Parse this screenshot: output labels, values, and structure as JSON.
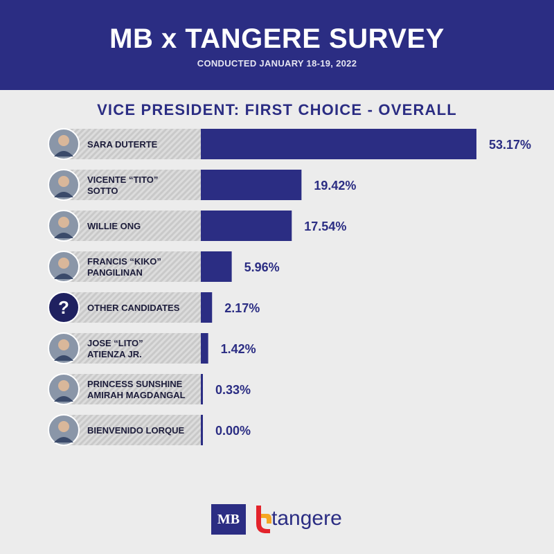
{
  "header": {
    "title": "MB x TANGERE SURVEY",
    "subtitle": "CONDUCTED JANUARY 18-19, 2022"
  },
  "colors": {
    "primary": "#2b2d83",
    "background": "#ececec",
    "label_stripe_dark": "#c9c9c9",
    "label_stripe_light": "#dcdcdc"
  },
  "chart_data": {
    "type": "bar",
    "orientation": "horizontal",
    "title": "VICE PRESIDENT: FIRST CHOICE - OVERALL",
    "categories": [
      "SARA DUTERTE",
      "VICENTE “TITO” SOTTO",
      "WILLIE ONG",
      "FRANCIS “KIKO” PANGILINAN",
      "OTHER CANDIDATES",
      "JOSE “LITO” ATIENZA JR.",
      "PRINCESS SUNSHINE AMIRAH  MAGDANGAL",
      "BIENVENIDO LORQUE"
    ],
    "label_lines": [
      [
        "SARA DUTERTE"
      ],
      [
        "VICENTE “TITO”",
        "SOTTO"
      ],
      [
        "WILLIE ONG"
      ],
      [
        "FRANCIS “KIKO”",
        "PANGILINAN"
      ],
      [
        "OTHER CANDIDATES"
      ],
      [
        "JOSE “LITO”",
        "ATIENZA JR."
      ],
      [
        "PRINCESS SUNSHINE",
        "AMIRAH  MAGDANGAL"
      ],
      [
        "BIENVENIDO LORQUE"
      ]
    ],
    "values": [
      53.17,
      19.42,
      17.54,
      5.96,
      2.17,
      1.42,
      0.33,
      0.0
    ],
    "value_labels": [
      "53.17%",
      "19.42%",
      "17.54%",
      "5.96%",
      "2.17%",
      "1.42%",
      "0.33%",
      "0.00%"
    ],
    "icons": [
      "avatar-photo",
      "avatar-photo",
      "avatar-photo",
      "avatar-photo",
      "question-icon",
      "avatar-photo",
      "avatar-photo",
      "avatar-photo"
    ],
    "question_glyph": "?",
    "xlim": [
      0,
      53.17
    ],
    "grid": false,
    "legend": "none"
  },
  "footer": {
    "mb_logo": "MB",
    "tangere_logo": "tangere"
  }
}
